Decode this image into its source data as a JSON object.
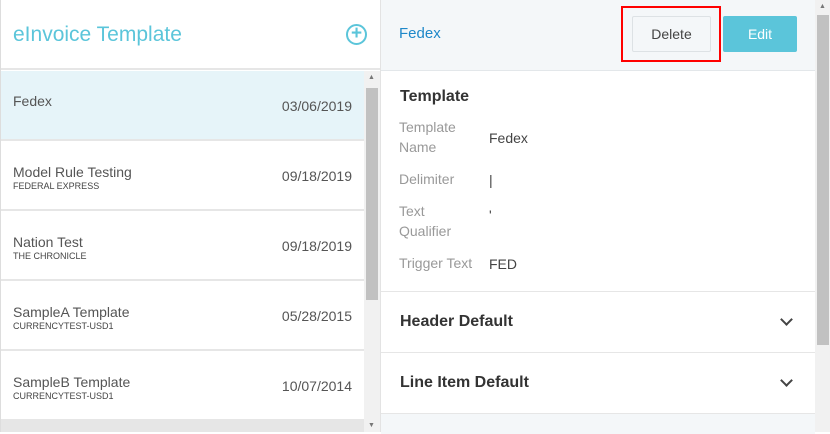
{
  "sidebar": {
    "title": "eInvoice Template",
    "add_icon": "plus-circle-icon",
    "items": [
      {
        "name": "Fedex",
        "sub": "",
        "date": "03/06/2019",
        "selected": true
      },
      {
        "name": "Model Rule Testing",
        "sub": "FEDERAL EXPRESS",
        "date": "09/18/2019"
      },
      {
        "name": "Nation Test",
        "sub": "THE CHRONICLE",
        "date": "09/18/2019"
      },
      {
        "name": "SampleA Template",
        "sub": "CURRENCYTEST-USD1",
        "date": "05/28/2015"
      },
      {
        "name": "SampleB Template",
        "sub": "CURRENCYTEST-USD1",
        "date": "10/07/2014"
      }
    ]
  },
  "detail": {
    "title": "Fedex",
    "delete_label": "Delete",
    "edit_label": "Edit",
    "template": {
      "heading": "Template",
      "fields": [
        {
          "label": "Template Name",
          "value": "Fedex"
        },
        {
          "label": "Delimiter",
          "value": "|"
        },
        {
          "label": "Text Qualifier",
          "value": "'"
        },
        {
          "label": "Trigger Text",
          "value": "FED"
        }
      ]
    },
    "header_default": "Header Default",
    "line_item_default": "Line Item Default"
  },
  "colors": {
    "accent": "#5bc5da",
    "link": "#1e88c9",
    "highlight": "#ff0000"
  }
}
